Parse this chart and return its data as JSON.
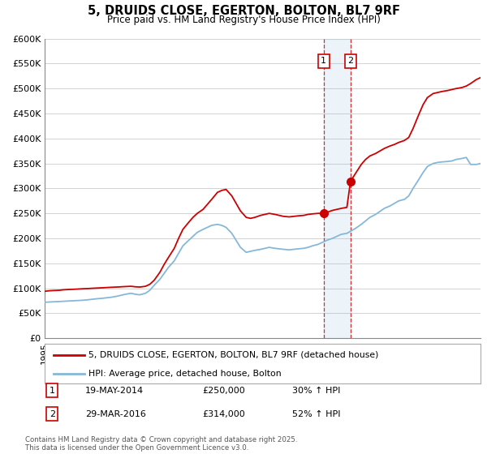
{
  "title": "5, DRUIDS CLOSE, EGERTON, BOLTON, BL7 9RF",
  "subtitle": "Price paid vs. HM Land Registry's House Price Index (HPI)",
  "legend_line1": "5, DRUIDS CLOSE, EGERTON, BOLTON, BL7 9RF (detached house)",
  "legend_line2": "HPI: Average price, detached house, Bolton",
  "transaction1_label": "1",
  "transaction1_date": "19-MAY-2014",
  "transaction1_price": "£250,000",
  "transaction1_hpi": "30% ↑ HPI",
  "transaction2_label": "2",
  "transaction2_date": "29-MAR-2016",
  "transaction2_price": "£314,000",
  "transaction2_hpi": "52% ↑ HPI",
  "footer": "Contains HM Land Registry data © Crown copyright and database right 2025.\nThis data is licensed under the Open Government Licence v3.0.",
  "red_color": "#cc0000",
  "blue_color": "#85b8d8",
  "bg_color": "#f5f5f5",
  "ylim": [
    0,
    600000
  ],
  "yticks": [
    0,
    50000,
    100000,
    150000,
    200000,
    250000,
    300000,
    350000,
    400000,
    450000,
    500000,
    550000,
    600000
  ],
  "transaction1_x": 2014.38,
  "transaction1_y": 250000,
  "transaction2_x": 2016.25,
  "transaction2_y": 314000,
  "xmin": 1995,
  "xmax": 2025.3,
  "red_years": [
    1995.0,
    1995.3,
    1995.6,
    1996.0,
    1996.3,
    1996.6,
    1997.0,
    1997.3,
    1997.6,
    1998.0,
    1998.3,
    1998.6,
    1999.0,
    1999.3,
    1999.6,
    2000.0,
    2000.3,
    2000.6,
    2001.0,
    2001.3,
    2001.6,
    2002.0,
    2002.3,
    2002.6,
    2003.0,
    2003.3,
    2003.6,
    2004.0,
    2004.3,
    2004.6,
    2005.0,
    2005.3,
    2005.6,
    2006.0,
    2006.3,
    2006.6,
    2007.0,
    2007.3,
    2007.6,
    2008.0,
    2008.3,
    2008.6,
    2009.0,
    2009.3,
    2009.6,
    2010.0,
    2010.3,
    2010.6,
    2011.0,
    2011.3,
    2011.6,
    2012.0,
    2012.3,
    2012.6,
    2013.0,
    2013.3,
    2013.6,
    2014.0,
    2014.38,
    2014.6,
    2015.0,
    2015.3,
    2015.6,
    2016.0,
    2016.25,
    2016.6,
    2017.0,
    2017.3,
    2017.6,
    2018.0,
    2018.3,
    2018.6,
    2019.0,
    2019.3,
    2019.6,
    2020.0,
    2020.3,
    2020.6,
    2021.0,
    2021.3,
    2021.6,
    2022.0,
    2022.3,
    2022.6,
    2023.0,
    2023.3,
    2023.6,
    2024.0,
    2024.3,
    2024.6,
    2025.0,
    2025.3
  ],
  "red_values": [
    94000,
    95000,
    95500,
    96000,
    97000,
    97500,
    98000,
    98500,
    99000,
    99500,
    100000,
    100500,
    101000,
    101500,
    102000,
    102500,
    103000,
    103500,
    104000,
    103000,
    102500,
    104000,
    108000,
    116000,
    132000,
    148000,
    162000,
    180000,
    200000,
    218000,
    232000,
    242000,
    250000,
    258000,
    268000,
    278000,
    292000,
    296000,
    298000,
    285000,
    270000,
    255000,
    242000,
    240000,
    242000,
    246000,
    248000,
    250000,
    248000,
    246000,
    244000,
    243000,
    244000,
    245000,
    246000,
    248000,
    249000,
    250000,
    250000,
    252000,
    256000,
    258000,
    260000,
    262000,
    314000,
    330000,
    348000,
    358000,
    365000,
    370000,
    375000,
    380000,
    385000,
    388000,
    392000,
    396000,
    402000,
    420000,
    448000,
    468000,
    482000,
    490000,
    492000,
    494000,
    496000,
    498000,
    500000,
    502000,
    505000,
    510000,
    518000,
    522000
  ],
  "blue_years": [
    1995.0,
    1995.3,
    1995.6,
    1996.0,
    1996.3,
    1996.6,
    1997.0,
    1997.3,
    1997.6,
    1998.0,
    1998.3,
    1998.6,
    1999.0,
    1999.3,
    1999.6,
    2000.0,
    2000.3,
    2000.6,
    2001.0,
    2001.3,
    2001.6,
    2002.0,
    2002.3,
    2002.6,
    2003.0,
    2003.3,
    2003.6,
    2004.0,
    2004.3,
    2004.6,
    2005.0,
    2005.3,
    2005.6,
    2006.0,
    2006.3,
    2006.6,
    2007.0,
    2007.3,
    2007.6,
    2008.0,
    2008.3,
    2008.6,
    2009.0,
    2009.3,
    2009.6,
    2010.0,
    2010.3,
    2010.6,
    2011.0,
    2011.3,
    2011.6,
    2012.0,
    2012.3,
    2012.6,
    2013.0,
    2013.3,
    2013.6,
    2014.0,
    2014.3,
    2014.6,
    2015.0,
    2015.3,
    2015.6,
    2016.0,
    2016.3,
    2016.6,
    2017.0,
    2017.3,
    2017.6,
    2018.0,
    2018.3,
    2018.6,
    2019.0,
    2019.3,
    2019.6,
    2020.0,
    2020.3,
    2020.6,
    2021.0,
    2021.3,
    2021.6,
    2022.0,
    2022.3,
    2022.6,
    2023.0,
    2023.3,
    2023.6,
    2024.0,
    2024.3,
    2024.6,
    2025.0,
    2025.3
  ],
  "blue_values": [
    72000,
    72500,
    73000,
    73500,
    74000,
    74500,
    75000,
    75500,
    76000,
    77000,
    78000,
    79000,
    80000,
    81000,
    82000,
    84000,
    86000,
    88000,
    90000,
    88000,
    87000,
    90000,
    96000,
    106000,
    118000,
    130000,
    142000,
    155000,
    170000,
    185000,
    196000,
    204000,
    212000,
    218000,
    222000,
    226000,
    228000,
    226000,
    222000,
    210000,
    196000,
    182000,
    172000,
    174000,
    176000,
    178000,
    180000,
    182000,
    180000,
    179000,
    178000,
    177000,
    178000,
    179000,
    180000,
    182000,
    185000,
    188000,
    192000,
    196000,
    200000,
    204000,
    208000,
    210000,
    215000,
    220000,
    228000,
    235000,
    242000,
    248000,
    254000,
    260000,
    265000,
    270000,
    275000,
    278000,
    285000,
    300000,
    318000,
    332000,
    344000,
    350000,
    352000,
    353000,
    354000,
    355000,
    358000,
    360000,
    362000,
    348000,
    348000,
    350000
  ]
}
